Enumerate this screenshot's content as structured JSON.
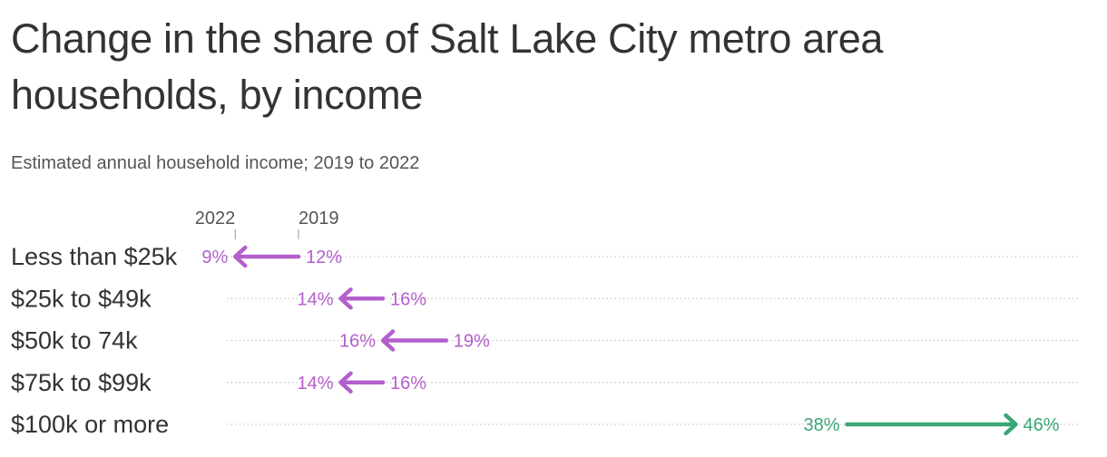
{
  "title": "Change in the share of Salt Lake City metro area households, by income",
  "subtitle": "Estimated annual household income; 2019 to 2022",
  "colors": {
    "decrease": "#b35fcc",
    "increase": "#3aa676",
    "text": "#333333",
    "grid": "#cccccc"
  },
  "chart_data": {
    "type": "arrow",
    "key_labels": {
      "end": "2022",
      "start": "2019"
    },
    "categories": [
      "Less than $25k",
      "$25k to $49k",
      "$50k to 74k",
      "$75k to $99k",
      "$100k or more"
    ],
    "start_2019": [
      12,
      16,
      19,
      16,
      38
    ],
    "end_2022": [
      9,
      14,
      16,
      14,
      46
    ],
    "start_labels": [
      "12%",
      "16%",
      "19%",
      "16%",
      "38%"
    ],
    "end_labels": [
      "9%",
      "14%",
      "16%",
      "14%",
      "46%"
    ],
    "grid": "dotted row lines"
  }
}
